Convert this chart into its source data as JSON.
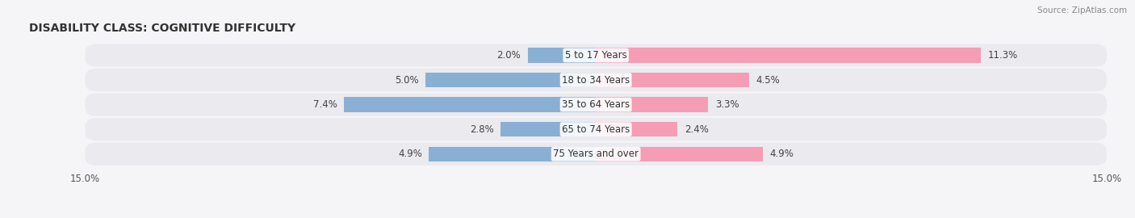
{
  "title": "DISABILITY CLASS: COGNITIVE DIFFICULTY",
  "source": "Source: ZipAtlas.com",
  "categories": [
    "5 to 17 Years",
    "18 to 34 Years",
    "35 to 64 Years",
    "65 to 74 Years",
    "75 Years and over"
  ],
  "male_values": [
    2.0,
    5.0,
    7.4,
    2.8,
    4.9
  ],
  "female_values": [
    11.3,
    4.5,
    3.3,
    2.4,
    4.9
  ],
  "max_val": 15.0,
  "male_color": "#8aafd4",
  "female_color": "#f49db5",
  "row_bg_color": "#eaeaef",
  "bar_height": 0.6,
  "title_fontsize": 10,
  "label_fontsize": 8.5,
  "axis_fontsize": 8.5,
  "legend_fontsize": 9
}
